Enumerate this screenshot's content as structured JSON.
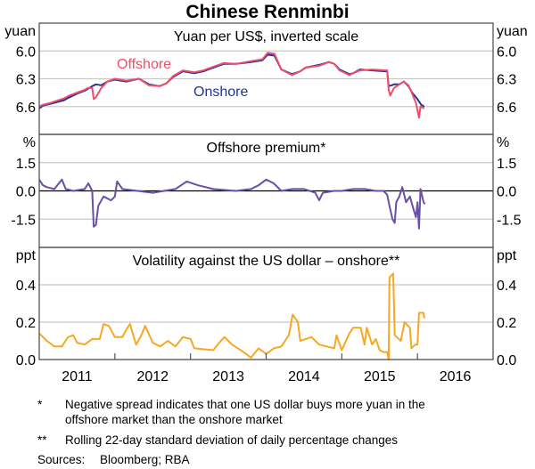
{
  "chart_data": {
    "title": "Chinese Renminbi",
    "x_ticks": [
      "2011",
      "2012",
      "2013",
      "2014",
      "2015",
      "2016"
    ],
    "xlim": [
      2011.0,
      2017.0
    ],
    "panels": [
      {
        "type": "line",
        "title": "Yuan per US$, inverted scale",
        "unit": "yuan",
        "ylim": [
          5.7,
          6.9
        ],
        "inverted": true,
        "y_ticks": [
          "6.0",
          "6.3",
          "6.6"
        ],
        "y_tick_values": [
          6.0,
          6.3,
          6.6
        ],
        "grid": true,
        "series": [
          {
            "name": "Onshore",
            "color": "#1f3592",
            "x": [
              2011.0,
              2011.05,
              2011.15,
              2011.33,
              2011.4,
              2011.5,
              2011.6,
              2011.64,
              2011.7,
              2011.75,
              2011.82,
              2011.9,
              2012.0,
              2012.15,
              2012.32,
              2012.45,
              2012.59,
              2012.68,
              2012.77,
              2012.9,
              2013.05,
              2013.17,
              2013.3,
              2013.44,
              2013.6,
              2013.8,
              2013.95,
              2014.02,
              2014.11,
              2014.2,
              2014.34,
              2014.45,
              2014.52,
              2014.7,
              2014.83,
              2014.9,
              2014.97,
              2015.1,
              2015.15,
              2015.24,
              2015.4,
              2015.6,
              2015.62,
              2015.66,
              2015.69,
              2015.76,
              2015.82,
              2015.88,
              2015.93,
              2016.0,
              2016.05,
              2016.09
            ],
            "y": [
              6.62,
              6.59,
              6.57,
              6.53,
              6.5,
              6.46,
              6.43,
              6.41,
              6.38,
              6.36,
              6.37,
              6.33,
              6.31,
              6.33,
              6.3,
              6.36,
              6.38,
              6.35,
              6.28,
              6.22,
              6.24,
              6.22,
              6.18,
              6.14,
              6.14,
              6.12,
              6.1,
              6.04,
              6.05,
              6.2,
              6.25,
              6.22,
              6.18,
              6.15,
              6.12,
              6.14,
              6.2,
              6.25,
              6.24,
              6.2,
              6.21,
              6.22,
              6.38,
              6.37,
              6.36,
              6.36,
              6.33,
              6.38,
              6.45,
              6.52,
              6.58,
              6.6
            ]
          },
          {
            "name": "Offshore",
            "color": "#f04d6a",
            "x": [
              2011.0,
              2011.05,
              2011.15,
              2011.33,
              2011.4,
              2011.5,
              2011.6,
              2011.64,
              2011.7,
              2011.72,
              2011.75,
              2011.82,
              2011.9,
              2012.0,
              2012.15,
              2012.32,
              2012.45,
              2012.59,
              2012.68,
              2012.77,
              2012.9,
              2013.05,
              2013.17,
              2013.3,
              2013.44,
              2013.6,
              2013.8,
              2013.95,
              2014.02,
              2014.11,
              2014.2,
              2014.34,
              2014.45,
              2014.52,
              2014.7,
              2014.83,
              2014.9,
              2014.97,
              2015.1,
              2015.15,
              2015.24,
              2015.4,
              2015.6,
              2015.62,
              2015.64,
              2015.69,
              2015.76,
              2015.82,
              2015.88,
              2015.93,
              2015.98,
              2016.02,
              2016.04,
              2016.09
            ],
            "y": [
              6.6,
              6.58,
              6.56,
              6.51,
              6.48,
              6.45,
              6.42,
              6.4,
              6.4,
              6.52,
              6.5,
              6.4,
              6.33,
              6.3,
              6.32,
              6.3,
              6.37,
              6.38,
              6.35,
              6.27,
              6.21,
              6.23,
              6.21,
              6.17,
              6.13,
              6.14,
              6.11,
              6.09,
              6.02,
              6.03,
              6.2,
              6.26,
              6.22,
              6.18,
              6.16,
              6.12,
              6.14,
              6.21,
              6.26,
              6.24,
              6.21,
              6.2,
              6.21,
              6.42,
              6.48,
              6.4,
              6.36,
              6.33,
              6.37,
              6.46,
              6.56,
              6.72,
              6.6,
              6.62
            ]
          }
        ]
      },
      {
        "type": "line",
        "title": "Offshore premium*",
        "unit": "%",
        "ylim": [
          -3.0,
          3.0
        ],
        "y_ticks": [
          "1.5",
          "0.0",
          "-1.5"
        ],
        "y_tick_values": [
          1.5,
          0.0,
          -1.5
        ],
        "grid": true,
        "series": [
          {
            "color": "#6a4fa8",
            "x": [
              2011.0,
              2011.05,
              2011.1,
              2011.2,
              2011.3,
              2011.35,
              2011.45,
              2011.6,
              2011.65,
              2011.7,
              2011.72,
              2011.75,
              2011.78,
              2011.85,
              2011.95,
              2012.0,
              2012.03,
              2012.1,
              2012.3,
              2012.5,
              2012.65,
              2012.8,
              2012.95,
              2013.1,
              2013.3,
              2013.6,
              2013.8,
              2013.9,
              2014.0,
              2014.1,
              2014.2,
              2014.35,
              2014.5,
              2014.65,
              2014.7,
              2014.75,
              2014.9,
              2015.0,
              2015.15,
              2015.3,
              2015.45,
              2015.55,
              2015.6,
              2015.63,
              2015.67,
              2015.7,
              2015.72,
              2015.76,
              2015.8,
              2015.85,
              2015.9,
              2015.95,
              2015.98,
              2016.0,
              2016.02,
              2016.04,
              2016.08,
              2016.1
            ],
            "y": [
              0.6,
              0.3,
              0.2,
              0.1,
              0.6,
              0.1,
              0.0,
              0.1,
              0.4,
              0.0,
              -1.9,
              -1.8,
              -0.8,
              -0.3,
              -0.5,
              -0.3,
              0.5,
              0.1,
              0.0,
              -0.1,
              0.0,
              0.1,
              0.5,
              0.3,
              0.1,
              0.0,
              0.1,
              0.3,
              0.6,
              0.4,
              0.0,
              0.1,
              0.1,
              -0.1,
              -0.5,
              -0.1,
              0.0,
              0.0,
              0.1,
              0.1,
              0.0,
              0.0,
              -0.2,
              -0.8,
              -1.5,
              -1.7,
              -0.6,
              -0.3,
              0.2,
              -0.6,
              -0.3,
              -1.0,
              -1.4,
              -0.6,
              -2.0,
              0.1,
              -0.6,
              -0.7
            ]
          }
        ]
      },
      {
        "type": "line",
        "title": "Volatility against the US dollar – onshore**",
        "unit": "ppt",
        "ylim": [
          0.0,
          0.6
        ],
        "y_ticks": [
          "0.4",
          "0.2",
          "0.0"
        ],
        "y_tick_values": [
          0.4,
          0.2,
          0.0
        ],
        "grid": true,
        "series": [
          {
            "color": "#f7a823",
            "x": [
              2011.0,
              2011.1,
              2011.2,
              2011.3,
              2011.38,
              2011.45,
              2011.5,
              2011.6,
              2011.7,
              2011.8,
              2011.85,
              2011.92,
              2012.0,
              2012.1,
              2012.15,
              2012.2,
              2012.28,
              2012.35,
              2012.4,
              2012.5,
              2012.6,
              2012.7,
              2012.8,
              2012.9,
              2013.0,
              2013.05,
              2013.3,
              2013.4,
              2013.45,
              2013.55,
              2013.7,
              2013.8,
              2013.9,
              2014.0,
              2014.1,
              2014.2,
              2014.3,
              2014.35,
              2014.42,
              2014.45,
              2014.6,
              2014.7,
              2014.8,
              2014.9,
              2014.93,
              2015.0,
              2015.1,
              2015.15,
              2015.25,
              2015.3,
              2015.33,
              2015.4,
              2015.45,
              2015.5,
              2015.55,
              2015.6,
              2015.62,
              2015.63,
              2015.68,
              2015.7,
              2015.78,
              2015.83,
              2015.9,
              2015.92,
              2015.97,
              2016.0,
              2016.02,
              2016.08,
              2016.09
            ],
            "y": [
              0.14,
              0.1,
              0.07,
              0.07,
              0.12,
              0.13,
              0.09,
              0.08,
              0.11,
              0.11,
              0.19,
              0.18,
              0.12,
              0.12,
              0.16,
              0.19,
              0.08,
              0.13,
              0.18,
              0.09,
              0.07,
              0.1,
              0.07,
              0.12,
              0.11,
              0.06,
              0.05,
              0.1,
              0.12,
              0.08,
              0.04,
              0.01,
              0.06,
              0.03,
              0.06,
              0.07,
              0.13,
              0.24,
              0.2,
              0.1,
              0.12,
              0.08,
              0.07,
              0.06,
              0.13,
              0.05,
              0.14,
              0.17,
              0.17,
              0.08,
              0.17,
              0.08,
              0.11,
              0.05,
              0.04,
              0.04,
              0.0,
              0.44,
              0.46,
              0.13,
              0.1,
              0.2,
              0.17,
              0.06,
              0.08,
              0.08,
              0.25,
              0.25,
              0.22
            ]
          }
        ]
      }
    ],
    "series_labels": {
      "offshore": "Offshore",
      "onshore": "Onshore"
    },
    "notes": [
      {
        "mark": "*",
        "lines": [
          "Negative spread indicates that one US dollar buys more yuan in the",
          "offshore market than the onshore market"
        ]
      },
      {
        "mark": "**",
        "lines": [
          "Rolling 22-day standard deviation of daily percentage changes"
        ]
      }
    ],
    "sources_label": "Sources:",
    "sources": "Bloomberg; RBA"
  }
}
